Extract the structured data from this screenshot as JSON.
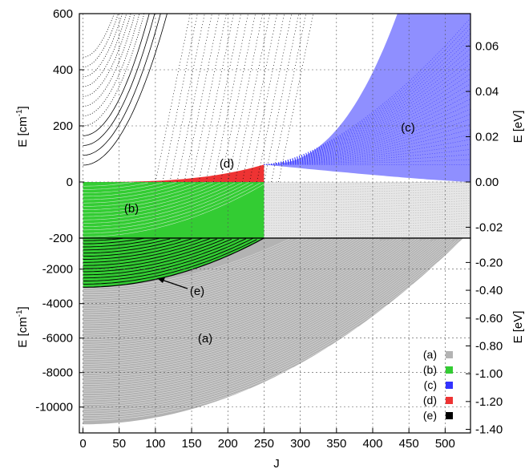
{
  "chart_data": [
    {
      "panel": "top",
      "type": "scatter",
      "ylabel_left": {
        "main": "E [cm",
        "sup": "-1",
        "close": "]"
      },
      "ylabel_right": "E [eV]",
      "ylim": [
        -200,
        600
      ],
      "xlim": [
        -5,
        535
      ],
      "left_ticks": [
        600,
        400,
        200,
        0,
        -200
      ],
      "right_ticks": [
        {
          "label": "0.06",
          "value": 483.9
        },
        {
          "label": "0.04",
          "value": 322.6
        },
        {
          "label": "0.02",
          "value": 161.3
        },
        {
          "label": "0.00",
          "value": 0
        },
        {
          "label": "-0.02",
          "value": -161.3
        }
      ],
      "grid": true,
      "annotations": [
        {
          "text": "(c)",
          "x": 452,
          "y": 160
        },
        {
          "text": "(d)",
          "x": 200,
          "y": 55
        },
        {
          "text": "(b)",
          "x": 68,
          "y": -75
        }
      ],
      "series": [
        {
          "name": "(a)",
          "color": "#b3b3b3",
          "description": "continuum states",
          "x_range": [
            0,
            525
          ]
        },
        {
          "name": "(b)",
          "color": "#33cc33",
          "description": "bound states below zero",
          "x_range": [
            0,
            250
          ],
          "y_range": [
            -200,
            0
          ]
        },
        {
          "name": "(c)",
          "color": "#3333ff",
          "description": "quasibound states above zero",
          "x_range": [
            250,
            525
          ],
          "y_range": [
            0,
            600
          ]
        },
        {
          "name": "(d)",
          "color": "#ee3333",
          "description": "quasibound states near threshold",
          "x_range": [
            0,
            250
          ],
          "y_range": [
            0,
            60
          ]
        },
        {
          "name": "(e)",
          "color": "#000000",
          "description": "high-energy rotational curves",
          "x_range": [
            0,
            280
          ]
        }
      ]
    },
    {
      "panel": "bottom",
      "type": "scatter",
      "ylabel_left": {
        "main": "E [cm",
        "sup": "-1",
        "close": "]"
      },
      "ylabel_right": "E [eV]",
      "xlabel": "J",
      "ylim": [
        -11500,
        -200
      ],
      "xlim": [
        -5,
        535
      ],
      "x_ticks": [
        0,
        50,
        100,
        150,
        200,
        250,
        300,
        350,
        400,
        450,
        500
      ],
      "left_ticks": [
        -2000,
        -4000,
        -6000,
        -8000,
        -10000
      ],
      "right_ticks": [
        {
          "label": "-0.20",
          "value": -1613
        },
        {
          "label": "-0.40",
          "value": -3226
        },
        {
          "label": "-0.60",
          "value": -4839
        },
        {
          "label": "-0.80",
          "value": -6452
        },
        {
          "label": "-1.00",
          "value": -8066
        },
        {
          "label": "-1.20",
          "value": -9679
        },
        {
          "label": "-1.40",
          "value": -11292
        }
      ],
      "grid": true,
      "annotations": [
        {
          "text": "(e)",
          "x": 160,
          "y": -3700,
          "arrow_to_x": 105,
          "arrow_to_y": -3030
        },
        {
          "text": "(a)",
          "x": 170,
          "y": -6900
        }
      ],
      "legend": {
        "placement": "bottom-right",
        "entries": [
          {
            "label": "(a)",
            "color": "#b3b3b3"
          },
          {
            "label": "(b)",
            "color": "#33cc33"
          },
          {
            "label": "(c)",
            "color": "#3333ff"
          },
          {
            "label": "(d)",
            "color": "#ee3333"
          },
          {
            "label": "(e)",
            "color": "#000000"
          }
        ]
      }
    }
  ]
}
